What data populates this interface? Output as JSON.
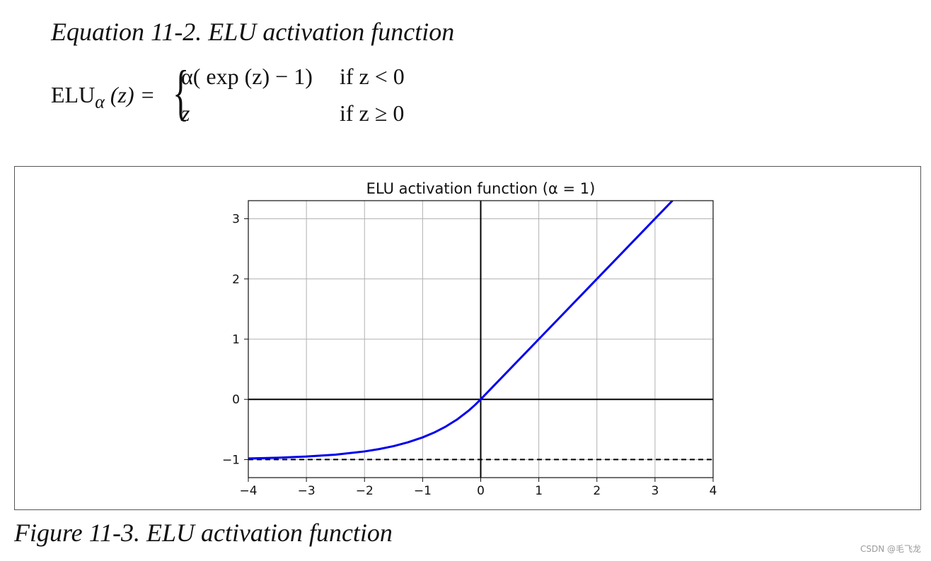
{
  "equation": {
    "title": "Equation 11-2. ELU activation function",
    "lhs_base": "ELU",
    "lhs_sub": "α",
    "lhs_arg": "(z) =",
    "brace": "{",
    "case1_expr": "α( exp (z) − 1)",
    "case1_cond": "if  z < 0",
    "case2_expr": "z",
    "case2_cond": "if  z ≥ 0"
  },
  "figure_caption": "Figure 11-3. ELU activation function",
  "watermark": "CSDN @毛飞龙",
  "chart_data": {
    "type": "line",
    "title": "ELU activation function (α = 1)",
    "xlabel": "",
    "ylabel": "",
    "xlim": [
      -4,
      4
    ],
    "ylim": [
      -1.3,
      3.3
    ],
    "xticks": [
      -4,
      -3,
      -2,
      -1,
      0,
      1,
      2,
      3,
      4
    ],
    "xtick_labels": [
      "−4",
      "−3",
      "−2",
      "−1",
      "0",
      "1",
      "2",
      "3",
      "4"
    ],
    "yticks": [
      -1,
      0,
      1,
      2,
      3
    ],
    "ytick_labels": [
      "−1",
      "0",
      "1",
      "2",
      "3"
    ],
    "grid": true,
    "series": [
      {
        "color": "#0000ee",
        "style": "solid",
        "x": [
          -4,
          -3.5,
          -3,
          -2.5,
          -2,
          -1.75,
          -1.5,
          -1.25,
          -1,
          -0.8,
          -0.6,
          -0.4,
          -0.2,
          -0.1,
          0,
          1,
          2,
          3,
          3.3
        ],
        "y": [
          -0.982,
          -0.97,
          -0.95,
          -0.918,
          -0.865,
          -0.826,
          -0.777,
          -0.713,
          -0.632,
          -0.551,
          -0.451,
          -0.33,
          -0.181,
          -0.095,
          0,
          1,
          2,
          3,
          3.3
        ]
      }
    ],
    "reference_lines": [
      {
        "orientation": "horizontal",
        "value": 0,
        "color": "#000000",
        "style": "solid"
      },
      {
        "orientation": "vertical",
        "value": 0,
        "color": "#000000",
        "style": "solid"
      },
      {
        "orientation": "horizontal",
        "value": -1,
        "color": "#000000",
        "style": "dashed"
      }
    ]
  }
}
